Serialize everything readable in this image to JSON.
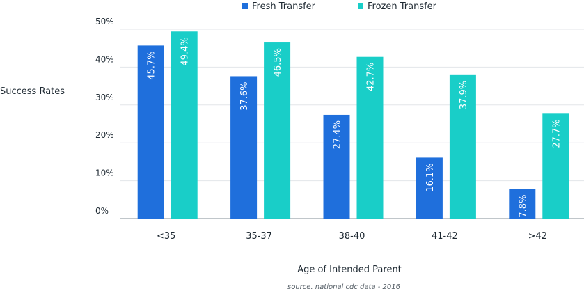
{
  "chart_data": {
    "type": "bar",
    "title": "",
    "categories": [
      "<35",
      "35-37",
      "38-40",
      "41-42",
      ">42"
    ],
    "series": [
      {
        "name": "Fresh Transfer",
        "color": "#1f6fdc",
        "values": [
          45.7,
          37.6,
          27.4,
          16.1,
          7.8
        ],
        "labels": [
          "45.7%",
          "37.6%",
          "27.4%",
          "16.1%",
          "7.8%"
        ]
      },
      {
        "name": "Frozen Transfer",
        "color": "#19cec8",
        "values": [
          49.4,
          46.5,
          42.7,
          37.9,
          27.7
        ],
        "labels": [
          "49.4%",
          "46.5%",
          "42.7%",
          "37.9%",
          "27.7%"
        ]
      }
    ],
    "xlabel": "Age of Intended Parent",
    "ylabel": "Success Rates",
    "ylim": [
      0,
      50
    ],
    "y_ticks": [
      {
        "value": 0,
        "label": "0%"
      },
      {
        "value": 10,
        "label": "10%"
      },
      {
        "value": 20,
        "label": "20%"
      },
      {
        "value": 30,
        "label": "30%"
      },
      {
        "value": 40,
        "label": "40%"
      },
      {
        "value": 50,
        "label": "50%"
      }
    ],
    "grid": true,
    "legend_position": "top-center",
    "note": "source. national cdc data - 2016"
  }
}
